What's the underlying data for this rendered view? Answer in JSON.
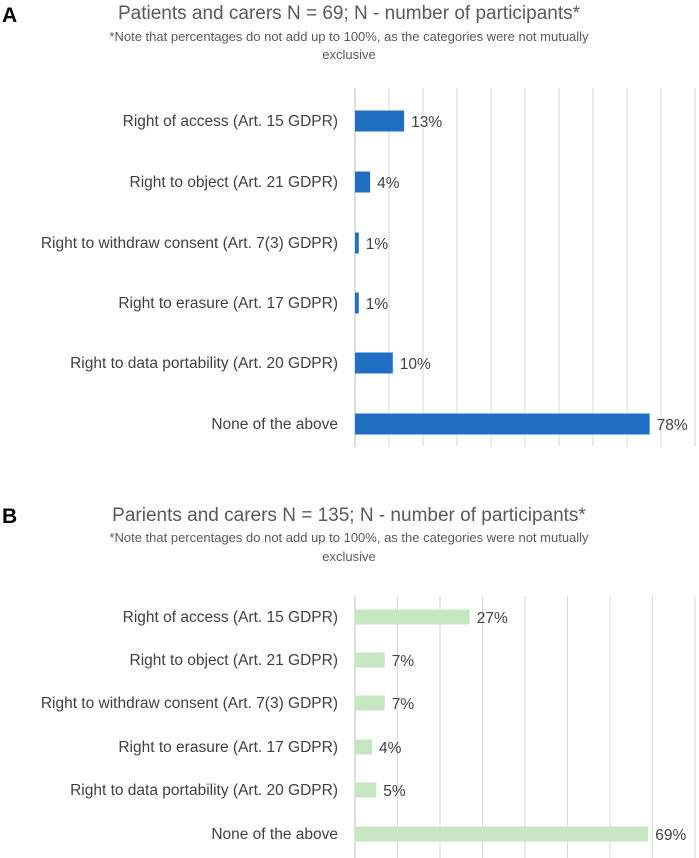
{
  "chart_data": [
    {
      "panel": "A",
      "type": "bar",
      "orientation": "horizontal",
      "title": "Patients and carers N = 69; N - number of participants*",
      "subtitle": "*Note that percentages do not add up to 100%, as the categories were not mutually exclusive",
      "categories": [
        "Right of access (Art. 15 GDPR)",
        "Right to object (Art. 21 GDPR)",
        "Right to withdraw consent (Art. 7(3) GDPR)",
        "Right to erasure (Art. 17 GDPR)",
        "Right to data portability (Art. 20 GDPR)",
        "None of the above"
      ],
      "values": [
        13,
        4,
        1,
        1,
        10,
        78
      ],
      "data_labels": [
        "13%",
        "4%",
        "1%",
        "1%",
        "10%",
        "78%"
      ],
      "unit": "%",
      "xlim": [
        0,
        90
      ],
      "grid": true,
      "color": "#1f6fc5"
    },
    {
      "panel": "B",
      "type": "bar",
      "orientation": "horizontal",
      "title": "Parients and carers N = 135; N - number of participants*",
      "subtitle": "*Note that percentages do not add up to 100%, as the categories were not mutually exclusive",
      "categories": [
        "Right of access (Art. 15 GDPR)",
        "Right to object (Art. 21 GDPR)",
        "Right to withdraw consent (Art. 7(3) GDPR)",
        "Right to erasure (Art. 17 GDPR)",
        "Right to data portability (Art. 20 GDPR)",
        "None of the above"
      ],
      "values": [
        27,
        7,
        7,
        4,
        5,
        69
      ],
      "data_labels": [
        "27%",
        "7%",
        "7%",
        "4%",
        "5%",
        "69%"
      ],
      "unit": "%",
      "xlim": [
        0,
        80
      ],
      "grid": true,
      "color": "#c5e6c0"
    }
  ]
}
